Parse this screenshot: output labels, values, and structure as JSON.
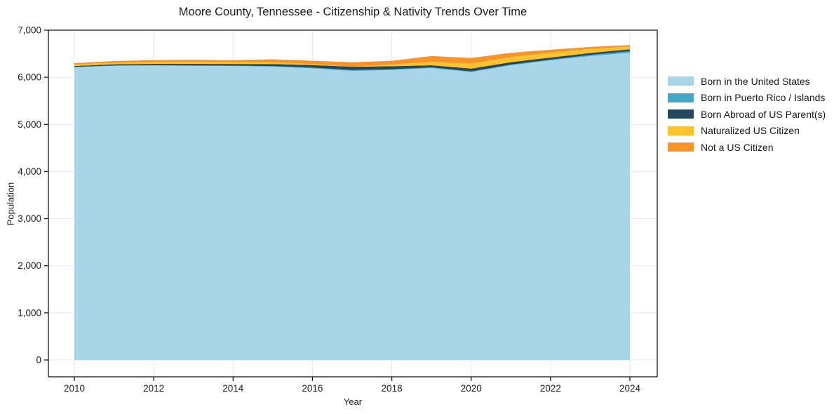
{
  "chart_data": {
    "type": "area",
    "stacked": true,
    "title": "Moore County, Tennessee - Citizenship & Nativity Trends Over Time",
    "xlabel": "Year",
    "ylabel": "Population",
    "x": [
      2010,
      2011,
      2012,
      2013,
      2014,
      2015,
      2016,
      2017,
      2018,
      2019,
      2020,
      2021,
      2022,
      2023,
      2024
    ],
    "series": [
      {
        "name": "Born in the United States",
        "color": "#a8d5e8",
        "values": [
          6215,
          6245,
          6250,
          6245,
          6240,
          6225,
          6190,
          6135,
          6155,
          6195,
          6110,
          6255,
          6360,
          6450,
          6520
        ]
      },
      {
        "name": "Born in Puerto Rico / Islands",
        "color": "#41a7c4",
        "values": [
          5,
          5,
          5,
          5,
          8,
          12,
          15,
          20,
          15,
          15,
          15,
          15,
          15,
          25,
          35
        ]
      },
      {
        "name": "Born Abroad of US Parent(s)",
        "color": "#23485c",
        "values": [
          20,
          25,
          30,
          35,
          35,
          45,
          55,
          70,
          65,
          45,
          60,
          50,
          45,
          40,
          40
        ]
      },
      {
        "name": "Naturalized US Citizen",
        "color": "#fcc32f",
        "values": [
          30,
          35,
          40,
          45,
          40,
          40,
          20,
          5,
          35,
          75,
          105,
          110,
          105,
          85,
          60
        ]
      },
      {
        "name": "Not a US Citizen",
        "color": "#f79428",
        "values": [
          30,
          35,
          40,
          40,
          40,
          60,
          70,
          90,
          80,
          120,
          120,
          90,
          60,
          45,
          30
        ]
      }
    ],
    "ylim": [
      0,
      7000
    ],
    "yticks": [
      0,
      1000,
      2000,
      3000,
      4000,
      5000,
      6000,
      7000
    ],
    "xticks": [
      2010,
      2012,
      2014,
      2016,
      2018,
      2020,
      2022,
      2024
    ],
    "grid": true,
    "legend_position": "right",
    "colors": {
      "grid": "#e7e7e7",
      "axis": "#1a1a1a",
      "background": "#ffffff",
      "tick_label": "#1a1a1a"
    }
  }
}
